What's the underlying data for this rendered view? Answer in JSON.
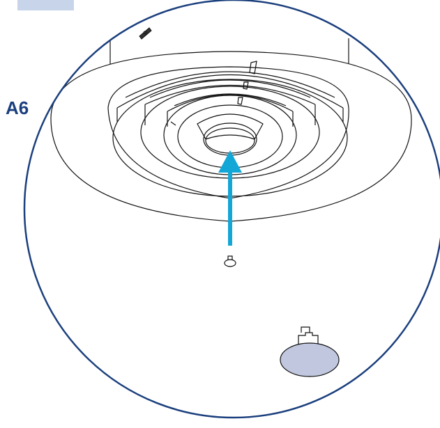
{
  "step": {
    "label": "A6"
  },
  "colors": {
    "label": "#1b3f7d",
    "outline": "#1b3f7d",
    "arrow": "#12a7d6",
    "tab": "#c7d4ea",
    "cap": "#c0c7de",
    "line": "#111111"
  },
  "icons": {
    "arrow": "arrow-up-icon",
    "screw": "screw-icon",
    "plug": "plug-icon"
  }
}
